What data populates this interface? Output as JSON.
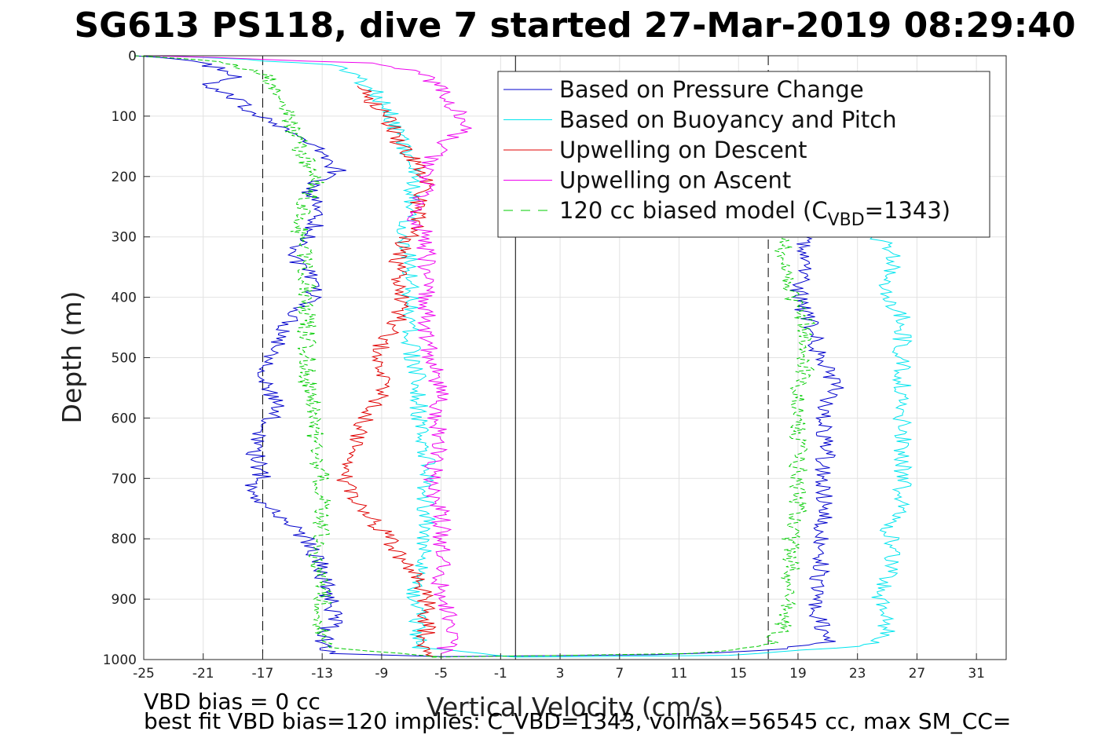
{
  "chart_data": {
    "type": "line",
    "title": "SG613 PS118, dive 7 started 27-Mar-2019 08:29:40",
    "xlabel": "Vertical Velocity (cm/s)",
    "ylabel": "Depth (m)",
    "xlim": [
      -25,
      33
    ],
    "ylim": [
      0,
      1000
    ],
    "y_reversed": true,
    "grid": true,
    "legend_position": "top-right",
    "xticks": [
      -25,
      -21,
      -17,
      -13,
      -9,
      -5,
      -1,
      3,
      7,
      11,
      15,
      19,
      23,
      27,
      31
    ],
    "yticks": [
      0,
      100,
      200,
      300,
      400,
      500,
      600,
      700,
      800,
      900,
      1000
    ],
    "reference_lines": {
      "vertical_solid_x": 0,
      "vertical_dashed_x": [
        -17,
        17
      ]
    },
    "series": [
      {
        "name": "Based on Pressure Change",
        "color": "#0000cc",
        "style": "solid",
        "descent": [
          [
            -25,
            0
          ],
          [
            -22,
            8
          ],
          [
            -20,
            20
          ],
          [
            -19,
            35
          ],
          [
            -21,
            50
          ],
          [
            -19,
            70
          ],
          [
            -18,
            90
          ],
          [
            -16,
            110
          ],
          [
            -15,
            130
          ],
          [
            -13,
            160
          ],
          [
            -12,
            190
          ],
          [
            -14,
            220
          ],
          [
            -13,
            260
          ],
          [
            -14,
            300
          ],
          [
            -15,
            330
          ],
          [
            -14,
            360
          ],
          [
            -13.5,
            400
          ],
          [
            -15,
            430
          ],
          [
            -16,
            480
          ],
          [
            -17,
            540
          ],
          [
            -16,
            580
          ],
          [
            -17,
            620
          ],
          [
            -17.5,
            660
          ],
          [
            -17,
            700
          ],
          [
            -18,
            720
          ],
          [
            -16,
            760
          ],
          [
            -14,
            800
          ],
          [
            -13,
            850
          ],
          [
            -12.5,
            900
          ],
          [
            -12,
            930
          ],
          [
            -13,
            960
          ],
          [
            -12.5,
            990
          ],
          [
            -5,
            995
          ]
        ],
        "ascent": [
          [
            -5,
            995
          ],
          [
            10,
            992
          ],
          [
            17,
            985
          ],
          [
            21,
            970
          ],
          [
            20.5,
            940
          ],
          [
            20,
            900
          ],
          [
            20.5,
            860
          ],
          [
            20.5,
            800
          ],
          [
            21,
            750
          ],
          [
            20.5,
            700
          ],
          [
            21,
            650
          ],
          [
            20.5,
            600
          ],
          [
            21.5,
            550
          ],
          [
            20.5,
            500
          ],
          [
            20,
            450
          ],
          [
            19,
            400
          ],
          [
            19.5,
            350
          ],
          [
            19.5,
            300
          ]
        ]
      },
      {
        "name": "Based on Buoyancy and Pitch",
        "color": "#00e5ee",
        "style": "solid",
        "descent": [
          [
            -23,
            0
          ],
          [
            -12,
            15
          ],
          [
            -11,
            30
          ],
          [
            -9.5,
            60
          ],
          [
            -8.5,
            90
          ],
          [
            -8,
            120
          ],
          [
            -7.5,
            150
          ],
          [
            -7,
            180
          ],
          [
            -7,
            220
          ],
          [
            -7,
            260
          ],
          [
            -7.5,
            300
          ],
          [
            -7,
            340
          ],
          [
            -7,
            380
          ],
          [
            -7,
            420
          ],
          [
            -7,
            460
          ],
          [
            -7,
            500
          ],
          [
            -6.5,
            540
          ],
          [
            -6.5,
            580
          ],
          [
            -6.5,
            620
          ],
          [
            -6,
            660
          ],
          [
            -6,
            700
          ],
          [
            -6,
            740
          ],
          [
            -6,
            780
          ],
          [
            -6.2,
            820
          ],
          [
            -6.5,
            860
          ],
          [
            -6.8,
            900
          ],
          [
            -6.5,
            940
          ],
          [
            -6.5,
            980
          ],
          [
            0,
            996
          ]
        ],
        "ascent": [
          [
            0,
            996
          ],
          [
            15,
            993
          ],
          [
            24,
            975
          ],
          [
            25,
            950
          ],
          [
            24.5,
            900
          ],
          [
            25,
            860
          ],
          [
            25.5,
            820
          ],
          [
            25,
            780
          ],
          [
            26,
            740
          ],
          [
            26,
            700
          ],
          [
            26,
            660
          ],
          [
            26,
            620
          ],
          [
            26,
            580
          ],
          [
            26,
            540
          ],
          [
            26,
            500
          ],
          [
            26,
            460
          ],
          [
            26,
            430
          ],
          [
            25,
            400
          ],
          [
            25,
            380
          ],
          [
            25.5,
            350
          ],
          [
            25,
            310
          ],
          [
            24,
            300
          ]
        ]
      },
      {
        "name": "Upwelling on Descent",
        "color": "#e00000",
        "style": "solid",
        "descent": [
          [
            -10,
            50
          ],
          [
            -9.5,
            80
          ],
          [
            -8.5,
            100
          ],
          [
            -8,
            140
          ],
          [
            -7,
            170
          ],
          [
            -6,
            200
          ],
          [
            -6.5,
            240
          ],
          [
            -6.5,
            280
          ],
          [
            -7.5,
            310
          ],
          [
            -8,
            350
          ],
          [
            -7.5,
            400
          ],
          [
            -8,
            440
          ],
          [
            -9,
            480
          ],
          [
            -9,
            520
          ],
          [
            -9,
            560
          ],
          [
            -10,
            600
          ],
          [
            -11,
            650
          ],
          [
            -11.5,
            700
          ],
          [
            -11,
            730
          ],
          [
            -10,
            760
          ],
          [
            -8.5,
            800
          ],
          [
            -7.5,
            840
          ],
          [
            -6.5,
            870
          ],
          [
            -6,
            900
          ],
          [
            -6,
            940
          ],
          [
            -6,
            980
          ],
          [
            -5.5,
            995
          ]
        ]
      },
      {
        "name": "Upwelling on Ascent",
        "color": "#ee00ee",
        "style": "solid",
        "descent": [
          [
            -24,
            0
          ],
          [
            -10,
            12
          ],
          [
            -6,
            30
          ],
          [
            -5,
            60
          ],
          [
            -4,
            90
          ],
          [
            -3.5,
            120
          ],
          [
            -5,
            150
          ],
          [
            -6,
            180
          ],
          [
            -6,
            220
          ],
          [
            -7,
            260
          ],
          [
            -6,
            300
          ],
          [
            -6,
            340
          ],
          [
            -6,
            380
          ],
          [
            -6,
            430
          ],
          [
            -6,
            470
          ],
          [
            -5.5,
            520
          ],
          [
            -5,
            560
          ],
          [
            -5.5,
            600
          ],
          [
            -5,
            640
          ],
          [
            -5.5,
            680
          ],
          [
            -5.5,
            720
          ],
          [
            -5,
            760
          ],
          [
            -5,
            800
          ],
          [
            -5,
            840
          ],
          [
            -5,
            880
          ],
          [
            -4.5,
            920
          ],
          [
            -4,
            960
          ],
          [
            -5,
            990
          ]
        ]
      },
      {
        "name": "120 cc biased model (C",
        "name_subscript": "VBD",
        "name_suffix": "=1343)",
        "color": "#00cc00",
        "style": "dashed",
        "descent": [
          [
            -25,
            0
          ],
          [
            -20,
            10
          ],
          [
            -17,
            30
          ],
          [
            -16,
            60
          ],
          [
            -15.5,
            90
          ],
          [
            -15,
            120
          ],
          [
            -14.5,
            150
          ],
          [
            -14,
            180
          ],
          [
            -13.5,
            210
          ],
          [
            -14,
            240
          ],
          [
            -14.5,
            270
          ],
          [
            -14.5,
            300
          ],
          [
            -14,
            340
          ],
          [
            -14,
            380
          ],
          [
            -14,
            420
          ],
          [
            -14,
            460
          ],
          [
            -14,
            500
          ],
          [
            -14,
            540
          ],
          [
            -13.5,
            580
          ],
          [
            -13.5,
            620
          ],
          [
            -13.5,
            660
          ],
          [
            -13,
            700
          ],
          [
            -13,
            740
          ],
          [
            -13,
            780
          ],
          [
            -13.5,
            820
          ],
          [
            -13,
            860
          ],
          [
            -13,
            900
          ],
          [
            -13,
            940
          ],
          [
            -13,
            980
          ],
          [
            -5,
            996
          ]
        ],
        "ascent": [
          [
            -5,
            996
          ],
          [
            12,
            990
          ],
          [
            17,
            975
          ],
          [
            18,
            950
          ],
          [
            18,
            920
          ],
          [
            18.5,
            880
          ],
          [
            18.5,
            840
          ],
          [
            18.5,
            800
          ],
          [
            19,
            760
          ],
          [
            19,
            720
          ],
          [
            19,
            680
          ],
          [
            19,
            640
          ],
          [
            19,
            600
          ],
          [
            19,
            560
          ],
          [
            19.5,
            520
          ],
          [
            19.5,
            480
          ],
          [
            19.5,
            440
          ],
          [
            18.5,
            400
          ],
          [
            18,
            360
          ],
          [
            18,
            320
          ],
          [
            18,
            300
          ]
        ]
      }
    ],
    "footer": [
      "VBD bias = 0 cc",
      "best fit VBD bias=120 implies: C_VBD=1343, volmax=56545 cc, max SM_CC="
    ]
  }
}
